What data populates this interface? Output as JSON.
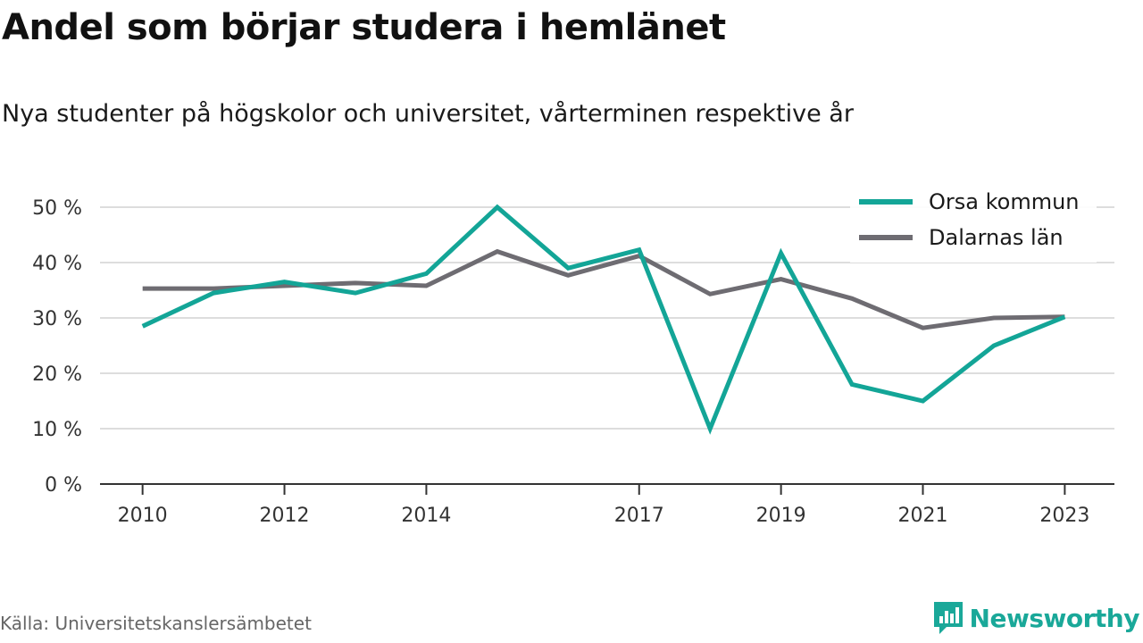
{
  "header": {
    "title": "Andel som börjar studera i hemlänet",
    "subtitle": "Nya studenter på högskolor och universitet, vårterminen respektive år"
  },
  "footer": {
    "source": "Källa: Universitetskanslersämbetet",
    "brand": "Newsworthy",
    "brand_icon": "newsworthy-logo-icon"
  },
  "colors": {
    "orsa": "#13a597",
    "dalarna": "#6e6c72",
    "grid": "#dddddd",
    "axis": "#333333",
    "brand": "#1aa899"
  },
  "chart_data": {
    "type": "line",
    "x": [
      2010,
      2011,
      2012,
      2013,
      2014,
      2015,
      2016,
      2017,
      2018,
      2019,
      2020,
      2021,
      2022,
      2023
    ],
    "xticks": [
      2010,
      2012,
      2014,
      2017,
      2019,
      2021,
      2023
    ],
    "xtick_labels": [
      "2010",
      "2012",
      "2014",
      "2017",
      "2019",
      "2021",
      "2023"
    ],
    "yticks": [
      0,
      10,
      20,
      30,
      40,
      50
    ],
    "ytick_labels": [
      "0 %",
      "10 %",
      "20 %",
      "30 %",
      "40 %",
      "50 %"
    ],
    "ylim": [
      0,
      50
    ],
    "xlim": [
      2009.4,
      2023.7
    ],
    "grid": true,
    "legend_position": "top-right",
    "series": [
      {
        "name": "Orsa kommun",
        "color": "#13a597",
        "values": [
          28.5,
          34.5,
          36.5,
          34.5,
          38,
          50,
          39,
          42.3,
          10,
          41.7,
          18,
          15,
          25,
          30.2
        ]
      },
      {
        "name": "Dalarnas län",
        "color": "#6e6c72",
        "values": [
          35.3,
          35.3,
          35.8,
          36.3,
          35.8,
          42,
          37.7,
          41.2,
          34.3,
          37,
          33.5,
          28.2,
          30,
          30.2
        ]
      }
    ]
  }
}
